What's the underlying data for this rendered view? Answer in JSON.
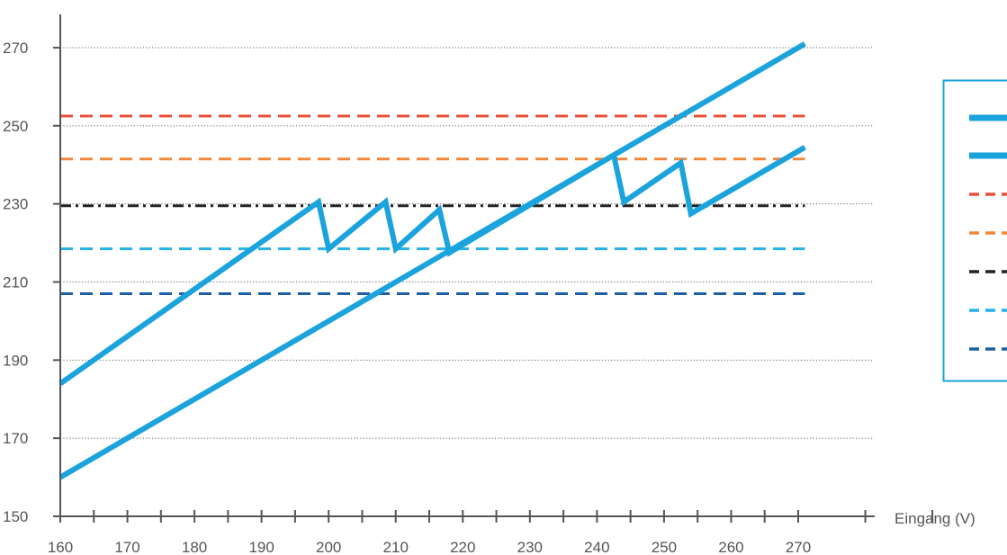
{
  "chart_data": {
    "type": "line",
    "title": "",
    "xlabel": "Eingang (V)",
    "ylabel": "",
    "xlim": [
      160,
      270
    ],
    "ylim": [
      150,
      270
    ],
    "xticks": [
      "160",
      "170",
      "180",
      "190",
      "200",
      "210",
      "220",
      "230",
      "240",
      "250",
      "260",
      "270"
    ],
    "yticks": [
      "150",
      "170",
      "190",
      "210",
      "230",
      "250",
      "270"
    ],
    "grid": "horizontal dotted",
    "legend": "right",
    "series": [
      {
        "color": "#1aa3dc",
        "style": "solid",
        "points": [
          [
            160,
            160
          ],
          [
            271,
            271
          ]
        ]
      },
      {
        "color": "#1aa3dc",
        "style": "solid",
        "points": [
          [
            160,
            184
          ],
          [
            198.5,
            230.5
          ],
          [
            200,
            218.5
          ],
          [
            208.5,
            230.5
          ],
          [
            210,
            218.5
          ],
          [
            216.5,
            228.5
          ],
          [
            218,
            217.5
          ],
          [
            242.5,
            242.5
          ],
          [
            244,
            230.5
          ],
          [
            252.5,
            240.5
          ],
          [
            254,
            227.5
          ],
          [
            271,
            244.5
          ]
        ]
      },
      {
        "color": "#e8503a",
        "style": "dashed",
        "points": [
          [
            160,
            252.5
          ],
          [
            271,
            252.5
          ]
        ]
      },
      {
        "color": "#f0883c",
        "style": "dashed",
        "points": [
          [
            160,
            241.5
          ],
          [
            271,
            241.5
          ]
        ]
      },
      {
        "color": "#222222",
        "style": "dashdot",
        "points": [
          [
            160,
            229.5
          ],
          [
            271,
            229.5
          ]
        ]
      },
      {
        "color": "#27b1e8",
        "style": "dashed",
        "points": [
          [
            160,
            218.5
          ],
          [
            271,
            218.5
          ]
        ]
      },
      {
        "color": "#1d5fa3",
        "style": "dashed",
        "points": [
          [
            160,
            207
          ],
          [
            271,
            207
          ]
        ]
      }
    ]
  }
}
